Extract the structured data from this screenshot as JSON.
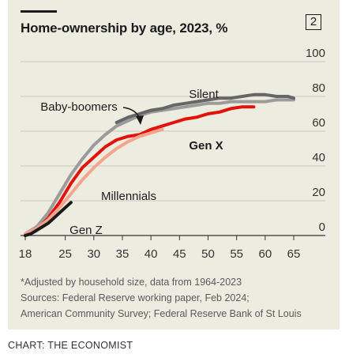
{
  "header": {
    "title": "Home-ownership by age, 2023, %",
    "chart_number": "2"
  },
  "chart_data": {
    "type": "line",
    "title": "Home-ownership by age, 2023, %",
    "xlabel": "",
    "ylabel": "",
    "xlim": [
      18,
      65
    ],
    "ylim": [
      0,
      100
    ],
    "x_ticks": [
      18,
      25,
      30,
      35,
      40,
      45,
      50,
      55,
      60,
      65
    ],
    "y_ticks": [
      0,
      20,
      40,
      60,
      80,
      100
    ],
    "grid": true,
    "series": [
      {
        "name": "Silent",
        "color": "#9b9b9b",
        "x": [
          18,
          20,
          22,
          24,
          26,
          28,
          30,
          32,
          34,
          36,
          38,
          40,
          42,
          44,
          46,
          48,
          50,
          52,
          54,
          56,
          58,
          60,
          62,
          64,
          65
        ],
        "y": [
          1,
          5,
          13,
          24,
          35,
          44,
          52,
          58,
          63,
          66,
          69,
          71,
          72,
          73,
          74,
          75,
          76,
          76,
          77,
          77,
          77,
          77,
          78,
          78,
          78
        ]
      },
      {
        "name": "Baby-boomers",
        "color": "#666666",
        "x": [
          34,
          36,
          38,
          40,
          42,
          44,
          46,
          48,
          50,
          52,
          54,
          56,
          58,
          60,
          62,
          64,
          65
        ],
        "y": [
          65,
          68,
          70,
          72,
          73,
          75,
          76,
          77,
          78,
          79,
          79,
          80,
          81,
          81,
          80,
          80,
          79
        ]
      },
      {
        "name": "Gen X",
        "color": "#e3120b",
        "x": [
          18,
          20,
          22,
          24,
          26,
          28,
          30,
          32,
          34,
          36,
          38,
          40,
          42,
          44,
          46,
          48,
          50,
          52,
          54,
          56,
          58
        ],
        "y": [
          0,
          3,
          10,
          19,
          30,
          39,
          45,
          51,
          55,
          57,
          58,
          61,
          63,
          65,
          67,
          68,
          70,
          71,
          73,
          74,
          74
        ]
      },
      {
        "name": "Millennials",
        "color": "#f4a58c",
        "x": [
          18,
          20,
          22,
          24,
          26,
          28,
          30,
          32,
          34,
          36,
          38,
          40,
          42
        ],
        "y": [
          1,
          4,
          9,
          16,
          24,
          32,
          39,
          45,
          50,
          54,
          57,
          59,
          61
        ]
      },
      {
        "name": "Gen Z",
        "color": "#1b1b1b",
        "x": [
          18,
          19,
          20,
          21,
          22,
          23,
          24,
          25,
          26
        ],
        "y": [
          0,
          1,
          3,
          5,
          7,
          10,
          13,
          16,
          19
        ]
      }
    ]
  },
  "notes": [
    "*Adjusted by household size, data from 1964-2023",
    "Sources: Federal Reserve working paper, Feb 2024;",
    "American Community Survey; Federal Reserve Bank of St Louis"
  ],
  "credit": "CHART: THE ECONOMIST"
}
